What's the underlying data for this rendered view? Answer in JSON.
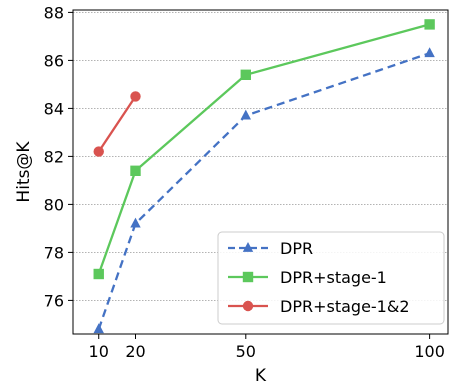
{
  "chart_data": {
    "type": "line",
    "xlabel": "K",
    "ylabel": "Hits@K",
    "x_ticks": [
      10,
      20,
      50,
      100
    ],
    "y_ticks": [
      76,
      78,
      80,
      82,
      84,
      86,
      88
    ],
    "xlim": [
      3,
      105
    ],
    "ylim": [
      74.6,
      88.1
    ],
    "grid": "horizontal dashed",
    "legend_position": "lower-right",
    "series": [
      {
        "name": "DPR",
        "x": [
          10,
          20,
          50,
          100
        ],
        "y": [
          74.8,
          79.2,
          83.7,
          86.3
        ],
        "color": "#4472c4",
        "marker": "triangle",
        "line_style": "dashed"
      },
      {
        "name": "DPR+stage-1",
        "x": [
          10,
          20,
          50,
          100
        ],
        "y": [
          77.1,
          81.4,
          85.4,
          87.5
        ],
        "color": "#5cc85c",
        "marker": "square",
        "line_style": "solid"
      },
      {
        "name": "DPR+stage-1&2",
        "x": [
          10,
          20
        ],
        "y": [
          82.2,
          84.5
        ],
        "color": "#d9534f",
        "marker": "circle",
        "line_style": "solid"
      }
    ]
  }
}
